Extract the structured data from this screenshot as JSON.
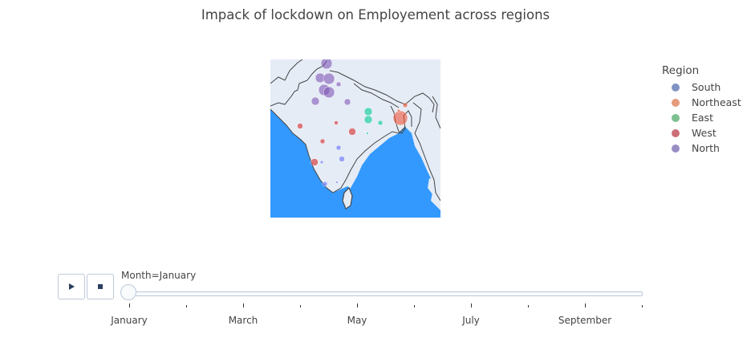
{
  "title": "Impack of lockdown on Employement across regions",
  "legend": {
    "title": "Region",
    "items": [
      {
        "label": "South",
        "color": "#636efa"
      },
      {
        "label": "Northeast",
        "color": "#ef553b"
      },
      {
        "label": "East",
        "color": "#00cc96"
      },
      {
        "label": "West",
        "color": "#d62728"
      },
      {
        "label": "North",
        "color": "#7f56b5"
      }
    ]
  },
  "map": {
    "land_color": "#e5ecf6",
    "ocean_color": "#3399ff",
    "border_color": "#444444"
  },
  "animation": {
    "play_icon": "play-icon",
    "stop_icon": "stop-icon",
    "slider_prefix": "Month=",
    "current": "January",
    "tick_labels": [
      "January",
      "March",
      "May",
      "July",
      "September"
    ]
  }
}
